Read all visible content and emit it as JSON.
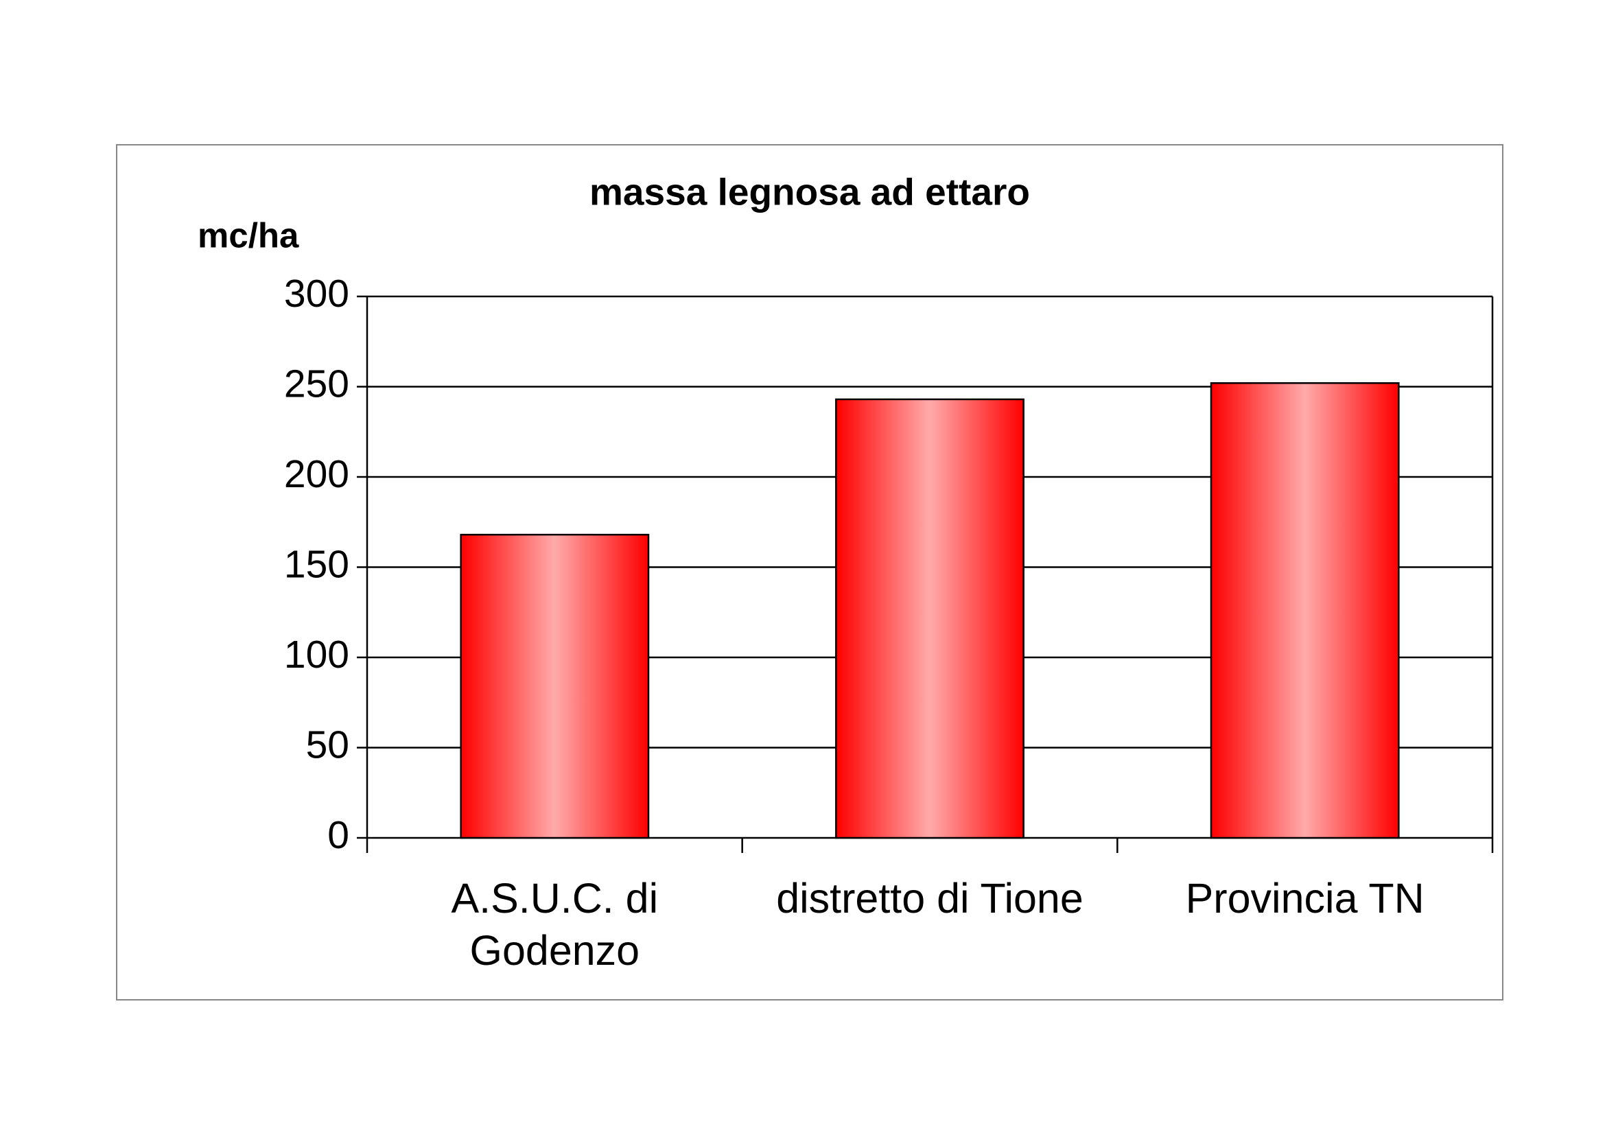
{
  "chart_data": {
    "type": "bar",
    "title": "massa legnosa ad ettaro",
    "y_label": "mc/ha",
    "categories": [
      "A.S.U.C. di Godenzo",
      "distretto di Tione",
      "Provincia TN"
    ],
    "values": [
      168,
      243,
      252
    ],
    "color": "#ff0000",
    "ylim": [
      0,
      300
    ],
    "yticks": [
      0,
      50,
      100,
      150,
      200,
      250,
      300
    ],
    "grid": true
  }
}
